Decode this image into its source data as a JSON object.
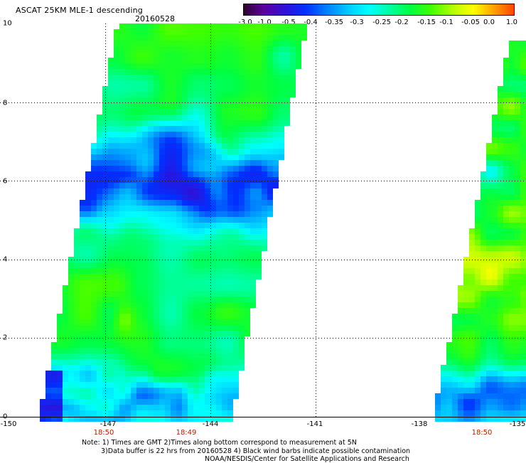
{
  "header": {
    "title": "ASCAT 25KM MLE-1 descending",
    "date": "20160528"
  },
  "colorbar": {
    "labels": [
      "-3.0",
      "-1.0",
      "-0.5",
      "-0.4",
      "-0.35",
      "-0.3",
      "-0.25",
      "-0.2",
      "-0.15",
      "-0.1",
      "-0.05",
      "0.0",
      "1.0"
    ],
    "colors": [
      "#30002f",
      "#5a00a0",
      "#3010d8",
      "#0030ff",
      "#0080ff",
      "#00c8ff",
      "#00ffff",
      "#00ffa0",
      "#00ff40",
      "#40ff00",
      "#b0ff00",
      "#ffff00",
      "#ffa000",
      "#ff4000"
    ]
  },
  "axes": {
    "y_ticks": [
      "0",
      "2",
      "4",
      "6",
      "8",
      "10"
    ],
    "x_ticks": [
      "-150",
      "-147",
      "-144",
      "-141",
      "-138",
      "-135"
    ],
    "gridlines": true
  },
  "times": [
    "18:50",
    "18:49",
    "18:50"
  ],
  "notes": {
    "line1": "Note: 1) Times are GMT 2)Times along bottom correspond to measurement at 5N",
    "line2": "3)Data buffer is 22 hrs from 20160528 4) Black wind barbs indicate possible contamination",
    "line3": "NOAA/NESDIS/Center for Satellite Applications and Research"
  },
  "swaths": [
    {
      "id": "swath-left",
      "times_label": "18:50 / 18:49",
      "description_colors": "green dominant, blue band near 5-7N, cyan near 0-1N"
    },
    {
      "id": "swath-right",
      "times_label": "18:50",
      "description_colors": "green/yellow with blue near 0-1N"
    }
  ]
}
